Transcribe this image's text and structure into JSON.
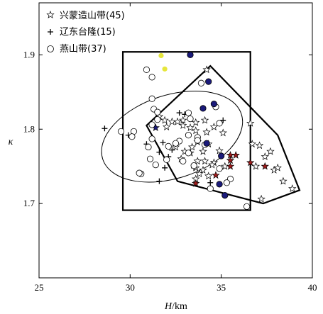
{
  "chart_data": {
    "type": "scatter",
    "title": "",
    "xlabel": "H",
    "xlabel_unit": "/km",
    "ylabel": "κ",
    "xlim": [
      25,
      40
    ],
    "ylim": [
      1.6,
      1.97
    ],
    "xticks": [
      25,
      30,
      35,
      40
    ],
    "yticks": [
      1.7,
      1.8,
      1.9
    ],
    "xtick_labels": [
      "25",
      "30",
      "35",
      "40"
    ],
    "ytick_labels": [
      "1.7",
      "1.8",
      "1.9"
    ],
    "grid": false,
    "legend_position": "top-left",
    "legend": [
      {
        "label": "兴蒙造山带(45)",
        "marker": "star"
      },
      {
        "label": "辽东台隆(15)",
        "marker": "plus"
      },
      {
        "label": "燕山带(37)",
        "marker": "circle"
      }
    ],
    "colors": {
      "axis": "#000000",
      "navy": "#1a1a7a",
      "red": "#a01c1c",
      "yellow": "#e6e63c"
    },
    "series": [
      {
        "name": "兴蒙造山带(45)",
        "marker": "star",
        "points": [
          [
            31.6,
            1.817
          ],
          [
            31.9,
            1.812
          ],
          [
            32.3,
            1.81
          ],
          [
            32.6,
            1.81
          ],
          [
            32.9,
            1.812
          ],
          [
            33.6,
            1.809
          ],
          [
            34.1,
            1.812
          ],
          [
            32.0,
            1.803
          ],
          [
            32.9,
            1.805
          ],
          [
            33.3,
            1.802
          ],
          [
            34.6,
            1.803
          ],
          [
            33.6,
            1.798
          ],
          [
            34.2,
            1.796
          ],
          [
            33.7,
            1.783
          ],
          [
            34.3,
            1.78
          ],
          [
            33.4,
            1.776
          ],
          [
            35.1,
            1.795
          ],
          [
            32.5,
            1.776
          ],
          [
            33.0,
            1.77
          ],
          [
            34.0,
            1.77
          ],
          [
            34.9,
            1.771
          ],
          [
            32.8,
            1.76
          ],
          [
            33.7,
            1.757
          ],
          [
            34.1,
            1.757
          ],
          [
            34.6,
            1.755
          ],
          [
            33.6,
            1.748
          ],
          [
            34.0,
            1.745
          ],
          [
            34.5,
            1.752
          ],
          [
            35.2,
            1.75
          ],
          [
            33.8,
            1.74
          ],
          [
            34.3,
            1.737
          ],
          [
            34.2,
            1.88
          ],
          [
            36.6,
            1.808
          ],
          [
            36.7,
            1.78
          ],
          [
            37.1,
            1.778
          ],
          [
            37.7,
            1.77
          ],
          [
            37.4,
            1.763
          ],
          [
            36.9,
            1.75
          ],
          [
            37.9,
            1.745
          ],
          [
            38.1,
            1.748
          ],
          [
            38.4,
            1.73
          ],
          [
            38.9,
            1.72
          ],
          [
            37.2,
            1.706
          ],
          [
            33.3,
            1.768
          ],
          [
            33.6,
            1.733
          ]
        ],
        "red_points": [
          [
            35.5,
            1.765
          ],
          [
            35.8,
            1.765
          ],
          [
            35.5,
            1.758
          ],
          [
            35.5,
            1.75
          ],
          [
            36.6,
            1.755
          ],
          [
            37.4,
            1.75
          ],
          [
            34.7,
            1.738
          ],
          [
            33.6,
            1.727
          ]
        ],
        "navy_points": [
          [
            31.4,
            1.802
          ]
        ]
      },
      {
        "name": "辽东台隆(15)",
        "marker": "plus",
        "points": [
          [
            28.6,
            1.801
          ],
          [
            29.9,
            1.792
          ],
          [
            30.9,
            1.78
          ],
          [
            31.8,
            1.782
          ],
          [
            31.6,
            1.769
          ],
          [
            32.1,
            1.763
          ],
          [
            32.3,
            1.772
          ],
          [
            31.9,
            1.748
          ],
          [
            32.5,
            1.78
          ],
          [
            33.5,
            1.748
          ],
          [
            34.4,
            1.728
          ],
          [
            35.1,
            1.812
          ],
          [
            33.0,
            1.82
          ],
          [
            32.7,
            1.822
          ],
          [
            31.6,
            1.73
          ]
        ]
      },
      {
        "name": "燕山带(37)",
        "marker": "circle",
        "points": [
          [
            30.9,
            1.88
          ],
          [
            31.2,
            1.87
          ],
          [
            31.2,
            1.841
          ],
          [
            31.3,
            1.827
          ],
          [
            31.5,
            1.823
          ],
          [
            31.2,
            1.806
          ],
          [
            29.5,
            1.797
          ],
          [
            30.2,
            1.797
          ],
          [
            30.1,
            1.79
          ],
          [
            31.2,
            1.787
          ],
          [
            31.0,
            1.776
          ],
          [
            32.7,
            1.784
          ],
          [
            33.3,
            1.814
          ],
          [
            33.2,
            1.792
          ],
          [
            32.1,
            1.777
          ],
          [
            32.5,
            1.781
          ],
          [
            33.2,
            1.768
          ],
          [
            33.7,
            1.789
          ],
          [
            34.1,
            1.779
          ],
          [
            32.9,
            1.757
          ],
          [
            31.1,
            1.76
          ],
          [
            30.6,
            1.74
          ],
          [
            31.4,
            1.752
          ],
          [
            33.9,
            1.862
          ],
          [
            33.7,
            1.785
          ],
          [
            34.9,
            1.808
          ],
          [
            35.5,
            1.733
          ],
          [
            35.3,
            1.728
          ],
          [
            34.4,
            1.72
          ],
          [
            36.4,
            1.696
          ],
          [
            34.7,
            1.83
          ],
          [
            33.5,
            1.751
          ],
          [
            31.5,
            1.813
          ],
          [
            33.2,
            1.822
          ],
          [
            32.0,
            1.759
          ],
          [
            34.9,
            1.747
          ],
          [
            30.5,
            1.741
          ]
        ],
        "navy_points": [
          [
            33.3,
            1.9
          ],
          [
            34.3,
            1.864
          ],
          [
            34.6,
            1.834
          ],
          [
            34.0,
            1.828
          ],
          [
            34.2,
            1.781
          ],
          [
            35.0,
            1.764
          ],
          [
            34.9,
            1.726
          ],
          [
            35.2,
            1.711
          ]
        ],
        "yellow_points": [
          [
            31.7,
            1.899
          ],
          [
            31.9,
            1.881
          ]
        ]
      }
    ],
    "shapes": [
      {
        "kind": "rectangle",
        "x_range": [
          29.6,
          36.6
        ],
        "y_range": [
          1.691,
          1.904
        ]
      },
      {
        "kind": "polygon",
        "vertices": [
          [
            30.9,
            1.805
          ],
          [
            34.4,
            1.885
          ],
          [
            38.1,
            1.792
          ],
          [
            39.3,
            1.718
          ],
          [
            37.3,
            1.7
          ],
          [
            32.6,
            1.73
          ]
        ]
      },
      {
        "kind": "ellipse",
        "center": [
          32.3,
          1.79
        ],
        "semi_axis_x": 4.0,
        "semi_axis_y": 0.056,
        "rotation_deg": -18
      }
    ]
  }
}
